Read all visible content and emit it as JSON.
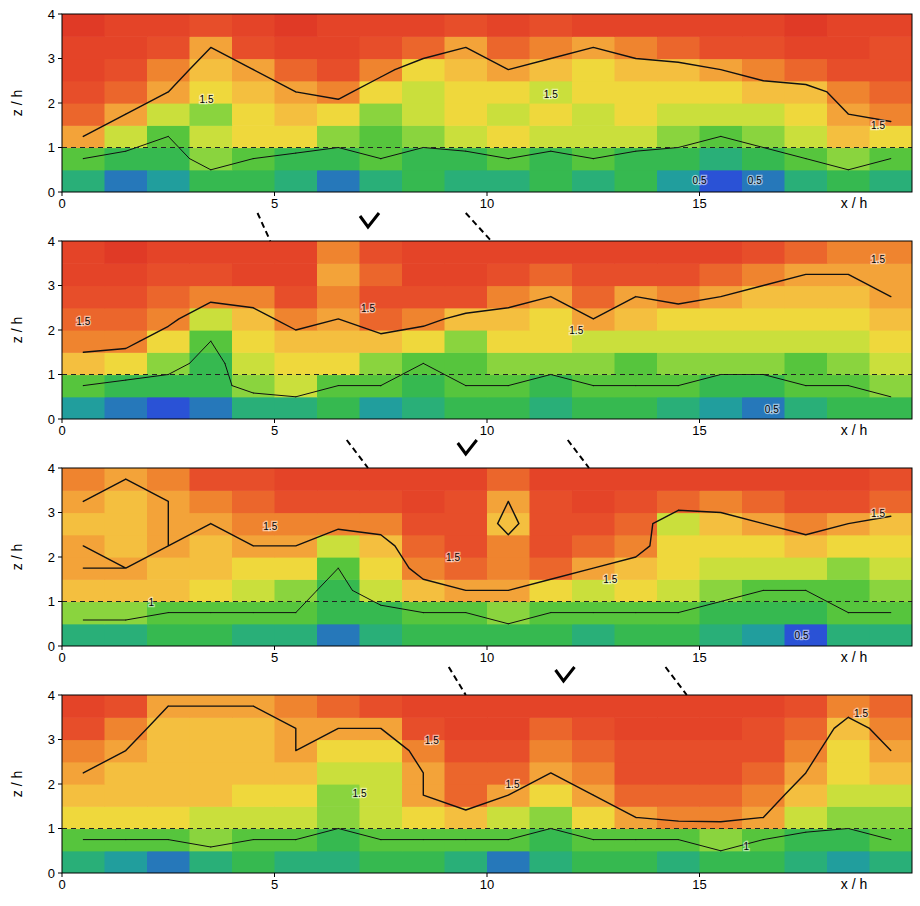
{
  "chart_data": [
    {
      "type": "heatmap",
      "x_label": "x / h",
      "y_label": "z / h",
      "x": [
        0.5,
        1.5,
        2.5,
        3.5,
        4.5,
        5.5,
        6.5,
        7.5,
        8.5,
        9.5,
        10.5,
        11.5,
        12.5,
        13.5,
        14.5,
        15.5,
        16.5,
        17.5,
        18.5,
        19.5
      ],
      "y": [
        0.25,
        0.75,
        1.25,
        1.75,
        2.25,
        2.75,
        3.25,
        3.75
      ],
      "xlim": [
        0,
        20
      ],
      "ylim": [
        0,
        4
      ],
      "xticks": [
        0,
        5,
        10,
        15
      ],
      "yticks": [
        0,
        1,
        2,
        3,
        4
      ],
      "reference_line": 1,
      "contour_levels": [
        0.5,
        1,
        1.5
      ],
      "cells": [
        [
          0.8,
          0.6,
          0.7,
          0.9,
          0.9,
          0.8,
          0.6,
          0.8,
          0.9,
          0.8,
          0.8,
          0.9,
          0.8,
          0.9,
          0.7,
          0.5,
          0.6,
          0.8,
          0.9,
          0.8
        ],
        [
          1.0,
          0.9,
          0.9,
          1.1,
          1.0,
          0.9,
          0.9,
          1.0,
          0.9,
          0.9,
          1.0,
          0.9,
          1.0,
          0.9,
          0.9,
          0.8,
          0.9,
          1.0,
          1.1,
          1.0
        ],
        [
          1.5,
          1.2,
          1.0,
          1.2,
          1.3,
          1.3,
          1.1,
          1.0,
          1.1,
          1.2,
          1.3,
          1.2,
          1.2,
          1.2,
          1.1,
          1.0,
          1.1,
          1.2,
          1.4,
          1.3
        ],
        [
          1.7,
          1.5,
          1.2,
          1.1,
          1.3,
          1.4,
          1.3,
          1.1,
          1.2,
          1.3,
          1.2,
          1.3,
          1.2,
          1.3,
          1.2,
          1.2,
          1.2,
          1.3,
          1.5,
          1.6
        ],
        [
          1.8,
          1.7,
          1.5,
          1.3,
          1.4,
          1.5,
          1.6,
          1.3,
          1.2,
          1.3,
          1.3,
          1.2,
          1.3,
          1.3,
          1.3,
          1.3,
          1.4,
          1.4,
          1.6,
          1.7
        ],
        [
          1.9,
          1.8,
          1.6,
          1.4,
          1.5,
          1.7,
          1.8,
          1.6,
          1.3,
          1.4,
          1.5,
          1.4,
          1.3,
          1.4,
          1.4,
          1.5,
          1.6,
          1.7,
          1.8,
          1.8
        ],
        [
          1.9,
          1.9,
          1.8,
          1.5,
          1.8,
          1.9,
          1.9,
          1.8,
          1.7,
          1.5,
          1.7,
          1.6,
          1.5,
          1.6,
          1.7,
          1.8,
          1.8,
          1.9,
          1.9,
          1.8
        ],
        [
          2.0,
          1.9,
          1.9,
          1.8,
          1.9,
          2.0,
          1.9,
          1.9,
          1.9,
          1.8,
          1.9,
          1.8,
          1.9,
          1.9,
          1.9,
          1.9,
          1.9,
          2.0,
          1.9,
          1.9
        ]
      ],
      "annotations": [
        {
          "text": "1.5",
          "x": 3.4,
          "y": 2.1
        },
        {
          "text": "1.5",
          "x": 11.5,
          "y": 2.2
        },
        {
          "text": "1.5",
          "x": 19.2,
          "y": 1.5
        },
        {
          "text": "0.5",
          "x": 15.0,
          "y": 0.27
        },
        {
          "text": "0.5",
          "x": 16.3,
          "y": 0.27
        }
      ]
    },
    {
      "type": "heatmap",
      "x_label": "x / h",
      "y_label": "z / h",
      "x": [
        0.5,
        1.5,
        2.5,
        3.5,
        4.5,
        5.5,
        6.5,
        7.5,
        8.5,
        9.5,
        10.5,
        11.5,
        12.5,
        13.5,
        14.5,
        15.5,
        16.5,
        17.5,
        18.5,
        19.5
      ],
      "y": [
        0.25,
        0.75,
        1.25,
        1.75,
        2.25,
        2.75,
        3.25,
        3.75
      ],
      "xlim": [
        0,
        20
      ],
      "ylim": [
        0,
        4
      ],
      "xticks": [
        0,
        5,
        10,
        15
      ],
      "yticks": [
        0,
        1,
        2,
        3,
        4
      ],
      "reference_line": 1,
      "contour_levels": [
        0.5,
        1,
        1.5
      ],
      "cells": [
        [
          0.7,
          0.6,
          0.5,
          0.6,
          0.8,
          0.8,
          0.9,
          0.7,
          0.8,
          0.9,
          0.9,
          0.8,
          0.9,
          0.9,
          0.8,
          0.7,
          0.6,
          0.8,
          0.9,
          0.9
        ],
        [
          1.0,
          0.9,
          0.9,
          0.9,
          1.1,
          1.2,
          1.0,
          1.0,
          0.9,
          1.0,
          1.0,
          0.9,
          1.0,
          1.0,
          1.0,
          0.9,
          0.9,
          1.0,
          1.0,
          1.1
        ],
        [
          1.4,
          1.3,
          1.1,
          0.9,
          1.2,
          1.3,
          1.3,
          1.1,
          1.0,
          1.0,
          1.1,
          1.1,
          1.1,
          1.0,
          1.1,
          1.1,
          1.1,
          1.0,
          1.1,
          1.2
        ],
        [
          1.6,
          1.6,
          1.3,
          1.0,
          1.3,
          1.4,
          1.4,
          1.4,
          1.3,
          1.1,
          1.3,
          1.3,
          1.2,
          1.2,
          1.2,
          1.2,
          1.2,
          1.2,
          1.2,
          1.3
        ],
        [
          1.7,
          1.7,
          1.6,
          1.2,
          1.4,
          1.6,
          1.5,
          1.7,
          1.6,
          1.4,
          1.4,
          1.3,
          1.5,
          1.4,
          1.3,
          1.3,
          1.3,
          1.3,
          1.3,
          1.4
        ],
        [
          1.8,
          1.8,
          1.7,
          1.6,
          1.6,
          1.8,
          1.6,
          1.8,
          1.8,
          1.8,
          1.6,
          1.5,
          1.7,
          1.5,
          1.6,
          1.5,
          1.4,
          1.4,
          1.4,
          1.5
        ],
        [
          1.9,
          1.9,
          1.8,
          1.8,
          1.9,
          1.9,
          1.5,
          1.7,
          1.9,
          1.9,
          1.8,
          1.7,
          1.8,
          1.8,
          1.8,
          1.7,
          1.6,
          1.5,
          1.5,
          1.5
        ],
        [
          1.9,
          2.0,
          1.9,
          1.9,
          1.9,
          1.9,
          1.6,
          1.8,
          1.9,
          1.9,
          1.9,
          1.9,
          1.9,
          1.9,
          1.9,
          1.9,
          1.8,
          1.7,
          1.6,
          1.6
        ]
      ],
      "annotations": [
        {
          "text": "1.5",
          "x": 0.5,
          "y": 2.2
        },
        {
          "text": "1.5",
          "x": 7.2,
          "y": 2.5
        },
        {
          "text": "1.5",
          "x": 12.1,
          "y": 2.0
        },
        {
          "text": "1.5",
          "x": 19.2,
          "y": 3.6
        },
        {
          "text": "0.5",
          "x": 16.7,
          "y": 0.22
        }
      ]
    },
    {
      "type": "heatmap",
      "x_label": "x / h",
      "y_label": "z / h",
      "x": [
        0.5,
        1.5,
        2.5,
        3.5,
        4.5,
        5.5,
        6.5,
        7.5,
        8.5,
        9.5,
        10.5,
        11.5,
        12.5,
        13.5,
        14.5,
        15.5,
        16.5,
        17.5,
        18.5,
        19.5
      ],
      "y": [
        0.25,
        0.75,
        1.25,
        1.75,
        2.25,
        2.75,
        3.25,
        3.75
      ],
      "xlim": [
        0,
        20
      ],
      "ylim": [
        0,
        4
      ],
      "xticks": [
        0,
        5,
        10,
        15
      ],
      "yticks": [
        0,
        1,
        2,
        3,
        4
      ],
      "reference_line": 1,
      "contour_levels": [
        0.5,
        1,
        1.5
      ],
      "cells": [
        [
          0.8,
          0.8,
          0.9,
          0.9,
          0.8,
          0.8,
          0.6,
          0.8,
          0.9,
          0.9,
          0.9,
          0.9,
          0.8,
          0.9,
          0.9,
          0.8,
          0.7,
          0.5,
          0.8,
          0.8
        ],
        [
          1.1,
          1.1,
          1.0,
          1.0,
          1.0,
          1.0,
          0.9,
          0.9,
          1.0,
          1.0,
          1.1,
          1.0,
          1.0,
          1.0,
          1.0,
          0.9,
          0.9,
          0.9,
          1.0,
          1.0
        ],
        [
          1.4,
          1.4,
          1.4,
          1.3,
          1.2,
          1.1,
          0.9,
          1.2,
          1.4,
          1.5,
          1.5,
          1.3,
          1.2,
          1.3,
          1.2,
          1.1,
          1.0,
          1.0,
          1.0,
          1.1
        ],
        [
          1.5,
          1.5,
          1.4,
          1.4,
          1.3,
          1.3,
          1.0,
          1.3,
          1.6,
          1.7,
          1.6,
          1.7,
          1.5,
          1.4,
          1.3,
          1.2,
          1.2,
          1.2,
          1.1,
          1.2
        ],
        [
          1.5,
          1.4,
          1.5,
          1.4,
          1.5,
          1.5,
          1.2,
          1.4,
          1.7,
          1.8,
          1.6,
          1.8,
          1.7,
          1.6,
          1.3,
          1.3,
          1.3,
          1.4,
          1.3,
          1.3
        ],
        [
          1.4,
          1.4,
          1.5,
          1.5,
          1.6,
          1.6,
          1.6,
          1.6,
          1.8,
          1.8,
          1.4,
          1.8,
          1.8,
          1.7,
          1.2,
          1.4,
          1.5,
          1.6,
          1.5,
          1.4
        ],
        [
          1.5,
          1.4,
          1.5,
          1.6,
          1.7,
          1.8,
          1.8,
          1.8,
          1.9,
          1.8,
          1.5,
          1.8,
          1.9,
          1.8,
          1.7,
          1.6,
          1.7,
          1.8,
          1.8,
          1.7
        ],
        [
          1.6,
          1.5,
          1.6,
          1.8,
          1.8,
          1.9,
          1.9,
          1.9,
          1.9,
          1.9,
          1.7,
          1.9,
          1.9,
          1.9,
          1.9,
          1.9,
          1.9,
          1.9,
          1.9,
          1.8
        ]
      ],
      "annotations": [
        {
          "text": "1.5",
          "x": 4.9,
          "y": 2.7
        },
        {
          "text": "1.5",
          "x": 9.2,
          "y": 2.0
        },
        {
          "text": "1.5",
          "x": 12.9,
          "y": 1.5
        },
        {
          "text": "1.5",
          "x": 19.2,
          "y": 3.0
        },
        {
          "text": "1",
          "x": 2.1,
          "y": 1.0
        },
        {
          "text": "0.5",
          "x": 17.4,
          "y": 0.25
        }
      ]
    },
    {
      "type": "heatmap",
      "x_label": "x / h",
      "y_label": "z / h",
      "x": [
        0.5,
        1.5,
        2.5,
        3.5,
        4.5,
        5.5,
        6.5,
        7.5,
        8.5,
        9.5,
        10.5,
        11.5,
        12.5,
        13.5,
        14.5,
        15.5,
        16.5,
        17.5,
        18.5,
        19.5
      ],
      "y": [
        0.25,
        0.75,
        1.25,
        1.75,
        2.25,
        2.75,
        3.25,
        3.75
      ],
      "xlim": [
        0,
        20
      ],
      "ylim": [
        0,
        4
      ],
      "xticks": [
        0,
        5,
        10,
        15
      ],
      "yticks": [
        0,
        1,
        2,
        3,
        4
      ],
      "reference_line": 1,
      "contour_levels": [
        0.5,
        1,
        1.5
      ],
      "cells": [
        [
          0.8,
          0.7,
          0.6,
          0.8,
          0.9,
          0.8,
          0.8,
          0.9,
          0.9,
          0.8,
          0.6,
          0.8,
          0.9,
          0.9,
          0.8,
          0.9,
          0.9,
          0.8,
          0.7,
          0.8
        ],
        [
          1.0,
          1.0,
          1.0,
          1.1,
          1.0,
          1.0,
          0.9,
          1.0,
          1.0,
          1.0,
          1.0,
          0.9,
          1.0,
          1.0,
          1.0,
          1.1,
          1.0,
          0.9,
          0.9,
          1.0
        ],
        [
          1.3,
          1.3,
          1.3,
          1.2,
          1.2,
          1.2,
          1.1,
          1.2,
          1.3,
          1.4,
          1.2,
          1.1,
          1.3,
          1.5,
          1.6,
          1.6,
          1.5,
          1.2,
          1.1,
          1.1
        ],
        [
          1.4,
          1.4,
          1.4,
          1.4,
          1.3,
          1.3,
          1.1,
          1.2,
          1.5,
          1.7,
          1.5,
          1.3,
          1.5,
          1.7,
          1.7,
          1.7,
          1.6,
          1.4,
          1.2,
          1.2
        ],
        [
          1.5,
          1.4,
          1.4,
          1.4,
          1.4,
          1.4,
          1.2,
          1.2,
          1.5,
          1.7,
          1.7,
          1.5,
          1.6,
          1.8,
          1.8,
          1.8,
          1.7,
          1.5,
          1.3,
          1.4
        ],
        [
          1.6,
          1.5,
          1.4,
          1.4,
          1.4,
          1.5,
          1.3,
          1.3,
          1.6,
          1.8,
          1.8,
          1.6,
          1.7,
          1.8,
          1.8,
          1.8,
          1.8,
          1.6,
          1.3,
          1.5
        ],
        [
          1.8,
          1.6,
          1.4,
          1.4,
          1.4,
          1.5,
          1.5,
          1.5,
          1.8,
          1.9,
          1.9,
          1.7,
          1.8,
          1.9,
          1.9,
          1.9,
          1.8,
          1.7,
          1.4,
          1.6
        ],
        [
          1.9,
          1.8,
          1.5,
          1.5,
          1.5,
          1.6,
          1.7,
          1.8,
          1.9,
          1.9,
          1.9,
          1.9,
          1.9,
          1.9,
          1.9,
          1.9,
          1.9,
          1.8,
          1.6,
          1.7
        ]
      ],
      "annotations": [
        {
          "text": "1.5",
          "x": 8.7,
          "y": 3.0
        },
        {
          "text": "1.5",
          "x": 10.6,
          "y": 2.0
        },
        {
          "text": "1.5",
          "x": 18.8,
          "y": 3.6
        },
        {
          "text": "1.5",
          "x": 7.0,
          "y": 1.8
        },
        {
          "text": "1",
          "x": 16.1,
          "y": 0.6
        }
      ]
    }
  ],
  "links": [
    [
      {
        "from": 4.6,
        "to": 4.9
      },
      {
        "from": 9.5,
        "to": 10.1
      }
    ],
    [
      {
        "from": 6.7,
        "to": 7.2
      },
      {
        "from": 11.9,
        "to": 12.4
      }
    ],
    [
      {
        "from": 9.1,
        "to": 9.5
      },
      {
        "from": 14.2,
        "to": 14.7
      }
    ]
  ],
  "arrows": [
    7.2,
    9.5,
    11.8
  ]
}
